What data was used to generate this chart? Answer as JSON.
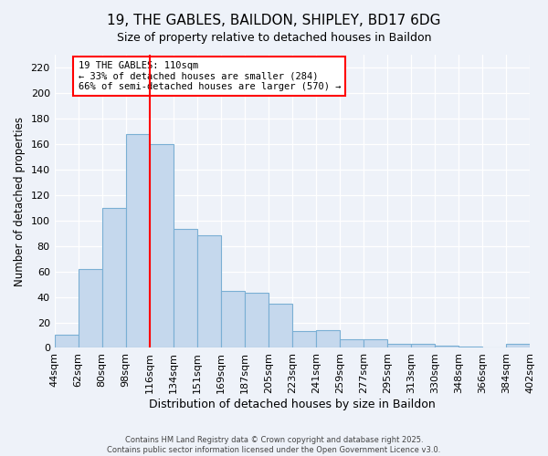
{
  "title": "19, THE GABLES, BAILDON, SHIPLEY, BD17 6DG",
  "subtitle": "Size of property relative to detached houses in Baildon",
  "xlabel": "Distribution of detached houses by size in Baildon",
  "ylabel": "Number of detached properties",
  "categories": [
    "44sqm",
    "62sqm",
    "80sqm",
    "98sqm",
    "116sqm",
    "134sqm",
    "151sqm",
    "169sqm",
    "187sqm",
    "205sqm",
    "223sqm",
    "241sqm",
    "259sqm",
    "277sqm",
    "295sqm",
    "313sqm",
    "330sqm",
    "348sqm",
    "366sqm",
    "384sqm",
    "402sqm"
  ],
  "values": [
    10,
    62,
    110,
    168,
    160,
    93,
    88,
    45,
    43,
    35,
    13,
    14,
    7,
    7,
    3,
    3,
    2,
    1,
    0,
    3
  ],
  "bar_color": "#c5d8ed",
  "bar_edge_color": "#7aafd4",
  "vline_x": 4,
  "vline_color": "red",
  "annotation_title": "19 THE GABLES: 110sqm",
  "annotation_line1": "← 33% of detached houses are smaller (284)",
  "annotation_line2": "66% of semi-detached houses are larger (570) →",
  "annotation_box_color": "white",
  "annotation_box_edge_color": "red",
  "ylim": [
    0,
    230
  ],
  "yticks": [
    0,
    20,
    40,
    60,
    80,
    100,
    120,
    140,
    160,
    180,
    200,
    220
  ],
  "footer_line1": "Contains HM Land Registry data © Crown copyright and database right 2025.",
  "footer_line2": "Contains public sector information licensed under the Open Government Licence v3.0.",
  "background_color": "#eef2f9"
}
